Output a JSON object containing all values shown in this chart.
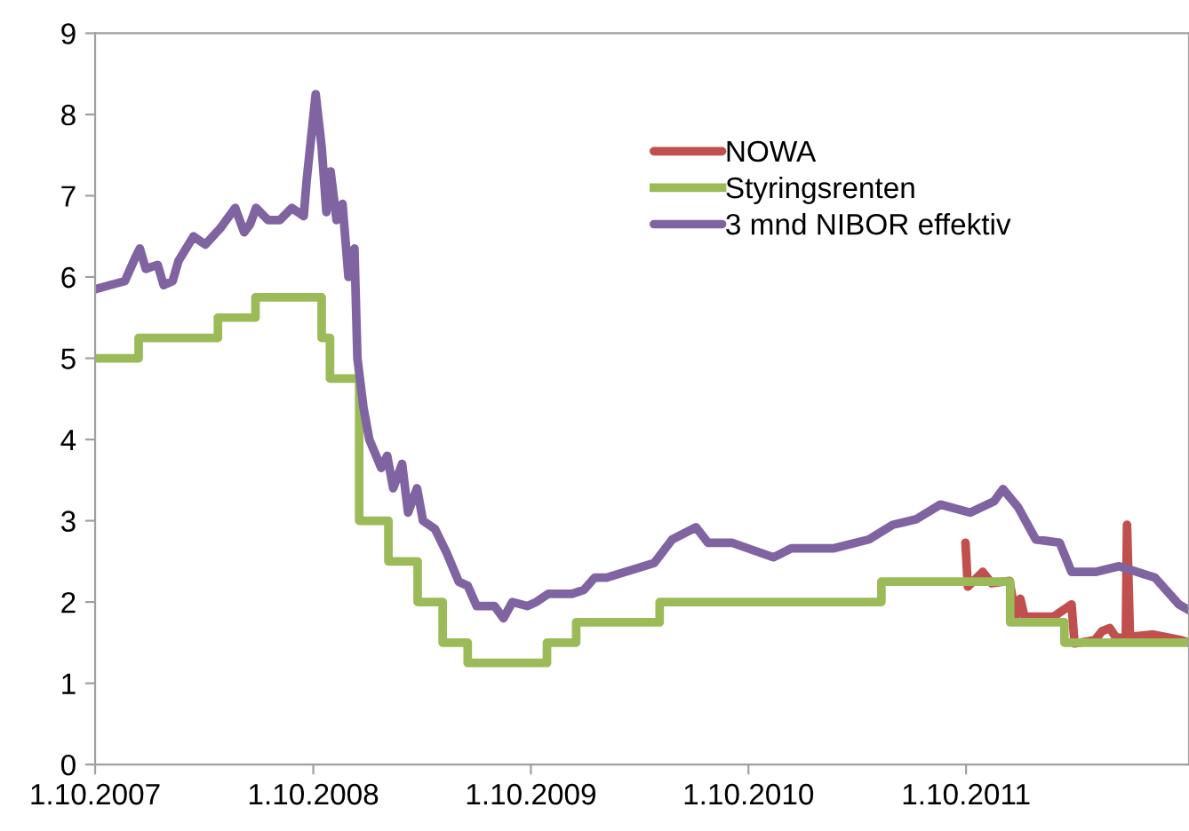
{
  "chart_data": {
    "type": "line",
    "xlim": [
      "2007-10-01",
      "2012-10-09"
    ],
    "xticks": [
      {
        "value": "2007-10-01",
        "label": "1.10.2007"
      },
      {
        "value": "2008-10-01",
        "label": "1.10.2008"
      },
      {
        "value": "2009-10-01",
        "label": "1.10.2009"
      },
      {
        "value": "2010-10-01",
        "label": "1.10.2010"
      },
      {
        "value": "2011-10-01",
        "label": "1.10.2011"
      }
    ],
    "ylim": [
      0,
      9
    ],
    "yticks": [
      0,
      1,
      2,
      3,
      4,
      5,
      6,
      7,
      8,
      9
    ],
    "grid": false,
    "legend": "top right",
    "marker": "none",
    "line_style": "solid",
    "series": [
      {
        "name": "NOWA",
        "color": "#c0504d",
        "x": [
          "2011-09-30",
          "2011-10-04",
          "2011-10-29",
          "2011-11-13",
          "2011-12-13",
          "2011-12-23",
          "2011-12-31",
          "2012-01-07",
          "2012-02-25",
          "2012-03-26",
          "2012-03-31",
          "2012-05-04",
          "2012-05-16",
          "2012-05-29",
          "2012-06-08",
          "2012-06-25",
          "2012-06-27",
          "2012-07-02",
          "2012-08-10",
          "2012-09-26",
          "2012-10-09"
        ],
        "values": [
          2.73,
          2.19,
          2.37,
          2.23,
          2.26,
          1.82,
          2.04,
          1.82,
          1.82,
          1.97,
          1.49,
          1.53,
          1.64,
          1.68,
          1.57,
          1.55,
          2.95,
          1.57,
          1.6,
          1.53,
          1.5
        ]
      },
      {
        "name": "Styringsrenten",
        "color": "#9bbb59",
        "type": "step",
        "x": [
          "2007-10-01",
          "2007-12-13",
          "2008-04-24",
          "2008-06-26",
          "2008-10-15",
          "2008-10-29",
          "2008-12-17",
          "2009-02-04",
          "2009-03-25",
          "2009-05-06",
          "2009-06-17",
          "2009-10-28",
          "2009-12-16",
          "2010-05-05",
          "2011-05-12",
          "2011-12-14",
          "2012-03-14",
          "2012-10-09"
        ],
        "values": [
          5.0,
          5.25,
          5.5,
          5.75,
          5.25,
          4.75,
          3.0,
          2.5,
          2.0,
          1.5,
          1.25,
          1.5,
          1.75,
          2.0,
          2.25,
          1.75,
          1.5,
          1.5
        ]
      },
      {
        "name": "3 mnd NIBOR effektiv",
        "color": "#8064a2",
        "x": [
          "2007-10-01",
          "2007-10-26",
          "2007-11-20",
          "2007-12-05",
          "2007-12-15",
          "2007-12-25",
          "2008-01-14",
          "2008-01-24",
          "2008-02-08",
          "2008-02-18",
          "2008-03-14",
          "2008-04-03",
          "2008-04-28",
          "2008-05-23",
          "2008-06-07",
          "2008-06-17",
          "2008-06-27",
          "2008-07-17",
          "2008-08-06",
          "2008-08-26",
          "2008-09-15",
          "2008-09-20",
          "2008-10-05",
          "2008-10-15",
          "2008-10-23",
          "2008-10-30",
          "2008-11-09",
          "2008-11-19",
          "2008-11-29",
          "2008-12-09",
          "2008-12-14",
          "2008-12-24",
          "2009-01-03",
          "2009-01-23",
          "2009-02-02",
          "2009-02-12",
          "2009-02-27",
          "2009-03-09",
          "2009-03-24",
          "2009-04-03",
          "2009-04-23",
          "2009-05-13",
          "2009-06-02",
          "2009-06-17",
          "2009-07-02",
          "2009-08-01",
          "2009-08-16",
          "2009-08-31",
          "2009-09-25",
          "2009-10-10",
          "2009-10-30",
          "2009-12-09",
          "2009-12-29",
          "2010-01-16",
          "2010-02-05",
          "2010-04-26",
          "2010-05-26",
          "2010-07-05",
          "2010-07-25",
          "2010-09-03",
          "2010-11-12",
          "2010-12-12",
          "2011-02-20",
          "2011-04-21",
          "2011-05-31",
          "2011-07-10",
          "2011-08-19",
          "2011-10-08",
          "2011-11-17",
          "2011-12-02",
          "2011-12-27",
          "2012-01-26",
          "2012-03-06",
          "2012-03-26",
          "2012-05-05",
          "2012-06-14",
          "2012-08-13",
          "2012-09-22",
          "2012-10-09"
        ],
        "values": [
          5.85,
          5.9,
          5.95,
          6.2,
          6.35,
          6.1,
          6.15,
          5.9,
          5.95,
          6.2,
          6.5,
          6.4,
          6.6,
          6.85,
          6.55,
          6.65,
          6.85,
          6.7,
          6.7,
          6.85,
          6.75,
          7.2,
          8.25,
          7.6,
          6.8,
          7.3,
          6.7,
          6.9,
          6.0,
          6.35,
          5.0,
          4.4,
          4.0,
          3.65,
          3.8,
          3.4,
          3.7,
          3.1,
          3.4,
          3.0,
          2.9,
          2.6,
          2.25,
          2.2,
          1.95,
          1.95,
          1.8,
          2.0,
          1.95,
          2.0,
          2.1,
          2.1,
          2.15,
          2.3,
          2.3,
          2.48,
          2.77,
          2.92,
          2.73,
          2.73,
          2.55,
          2.66,
          2.66,
          2.77,
          2.95,
          3.02,
          3.2,
          3.1,
          3.24,
          3.39,
          3.17,
          2.77,
          2.73,
          2.37,
          2.37,
          2.44,
          2.3,
          1.97,
          1.9
        ]
      }
    ]
  }
}
